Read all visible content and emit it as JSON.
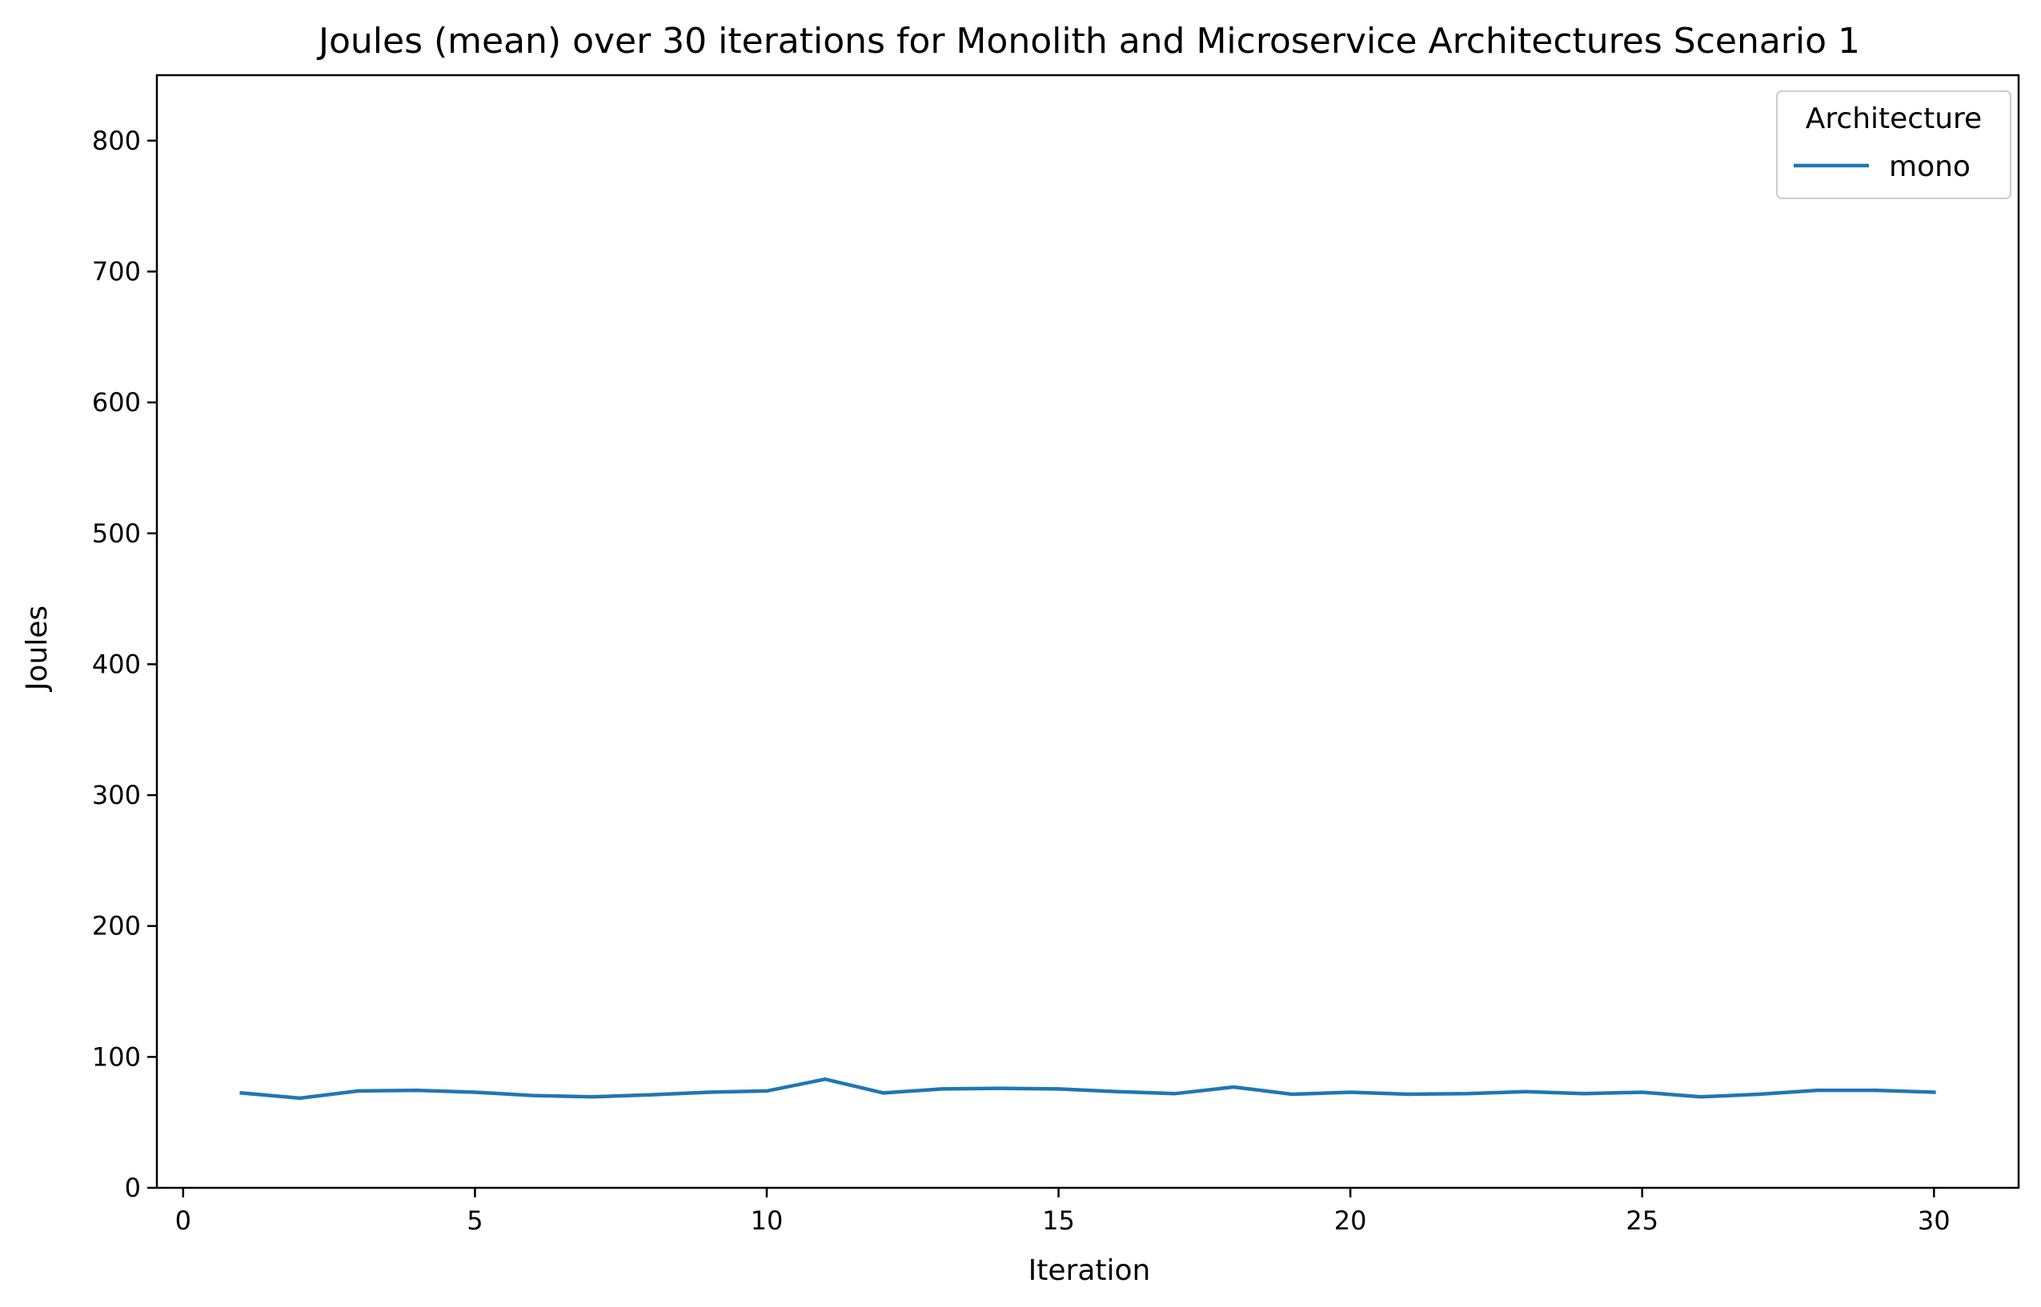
{
  "chart_data": {
    "type": "line",
    "title": "Joules (mean) over 30 iterations for Monolith and Microservice Architectures Scenario 1",
    "xlabel": "Iteration",
    "ylabel": "Joules",
    "xlim": [
      -0.45,
      31.45
    ],
    "ylim": [
      0,
      850
    ],
    "xticks": [
      0,
      5,
      10,
      15,
      20,
      25,
      30
    ],
    "yticks": [
      0,
      100,
      200,
      300,
      400,
      500,
      600,
      700,
      800
    ],
    "grid": false,
    "legend": {
      "title": "Architecture",
      "position": "top-right"
    },
    "series": [
      {
        "name": "mono",
        "color": "#1f77b4",
        "x": [
          1,
          2,
          3,
          4,
          5,
          6,
          7,
          8,
          9,
          10,
          11,
          12,
          13,
          14,
          15,
          16,
          17,
          18,
          19,
          20,
          21,
          22,
          23,
          24,
          25,
          26,
          27,
          28,
          29,
          30
        ],
        "values": [
          72.5,
          68.5,
          74,
          74.5,
          73,
          70.5,
          69.5,
          71,
          73,
          74,
          83,
          72.5,
          75.5,
          76,
          75.5,
          73.5,
          72,
          77,
          71.5,
          73,
          71.5,
          72,
          73.5,
          72,
          73,
          69.5,
          71.5,
          74.5,
          74.5,
          73
        ]
      }
    ]
  }
}
